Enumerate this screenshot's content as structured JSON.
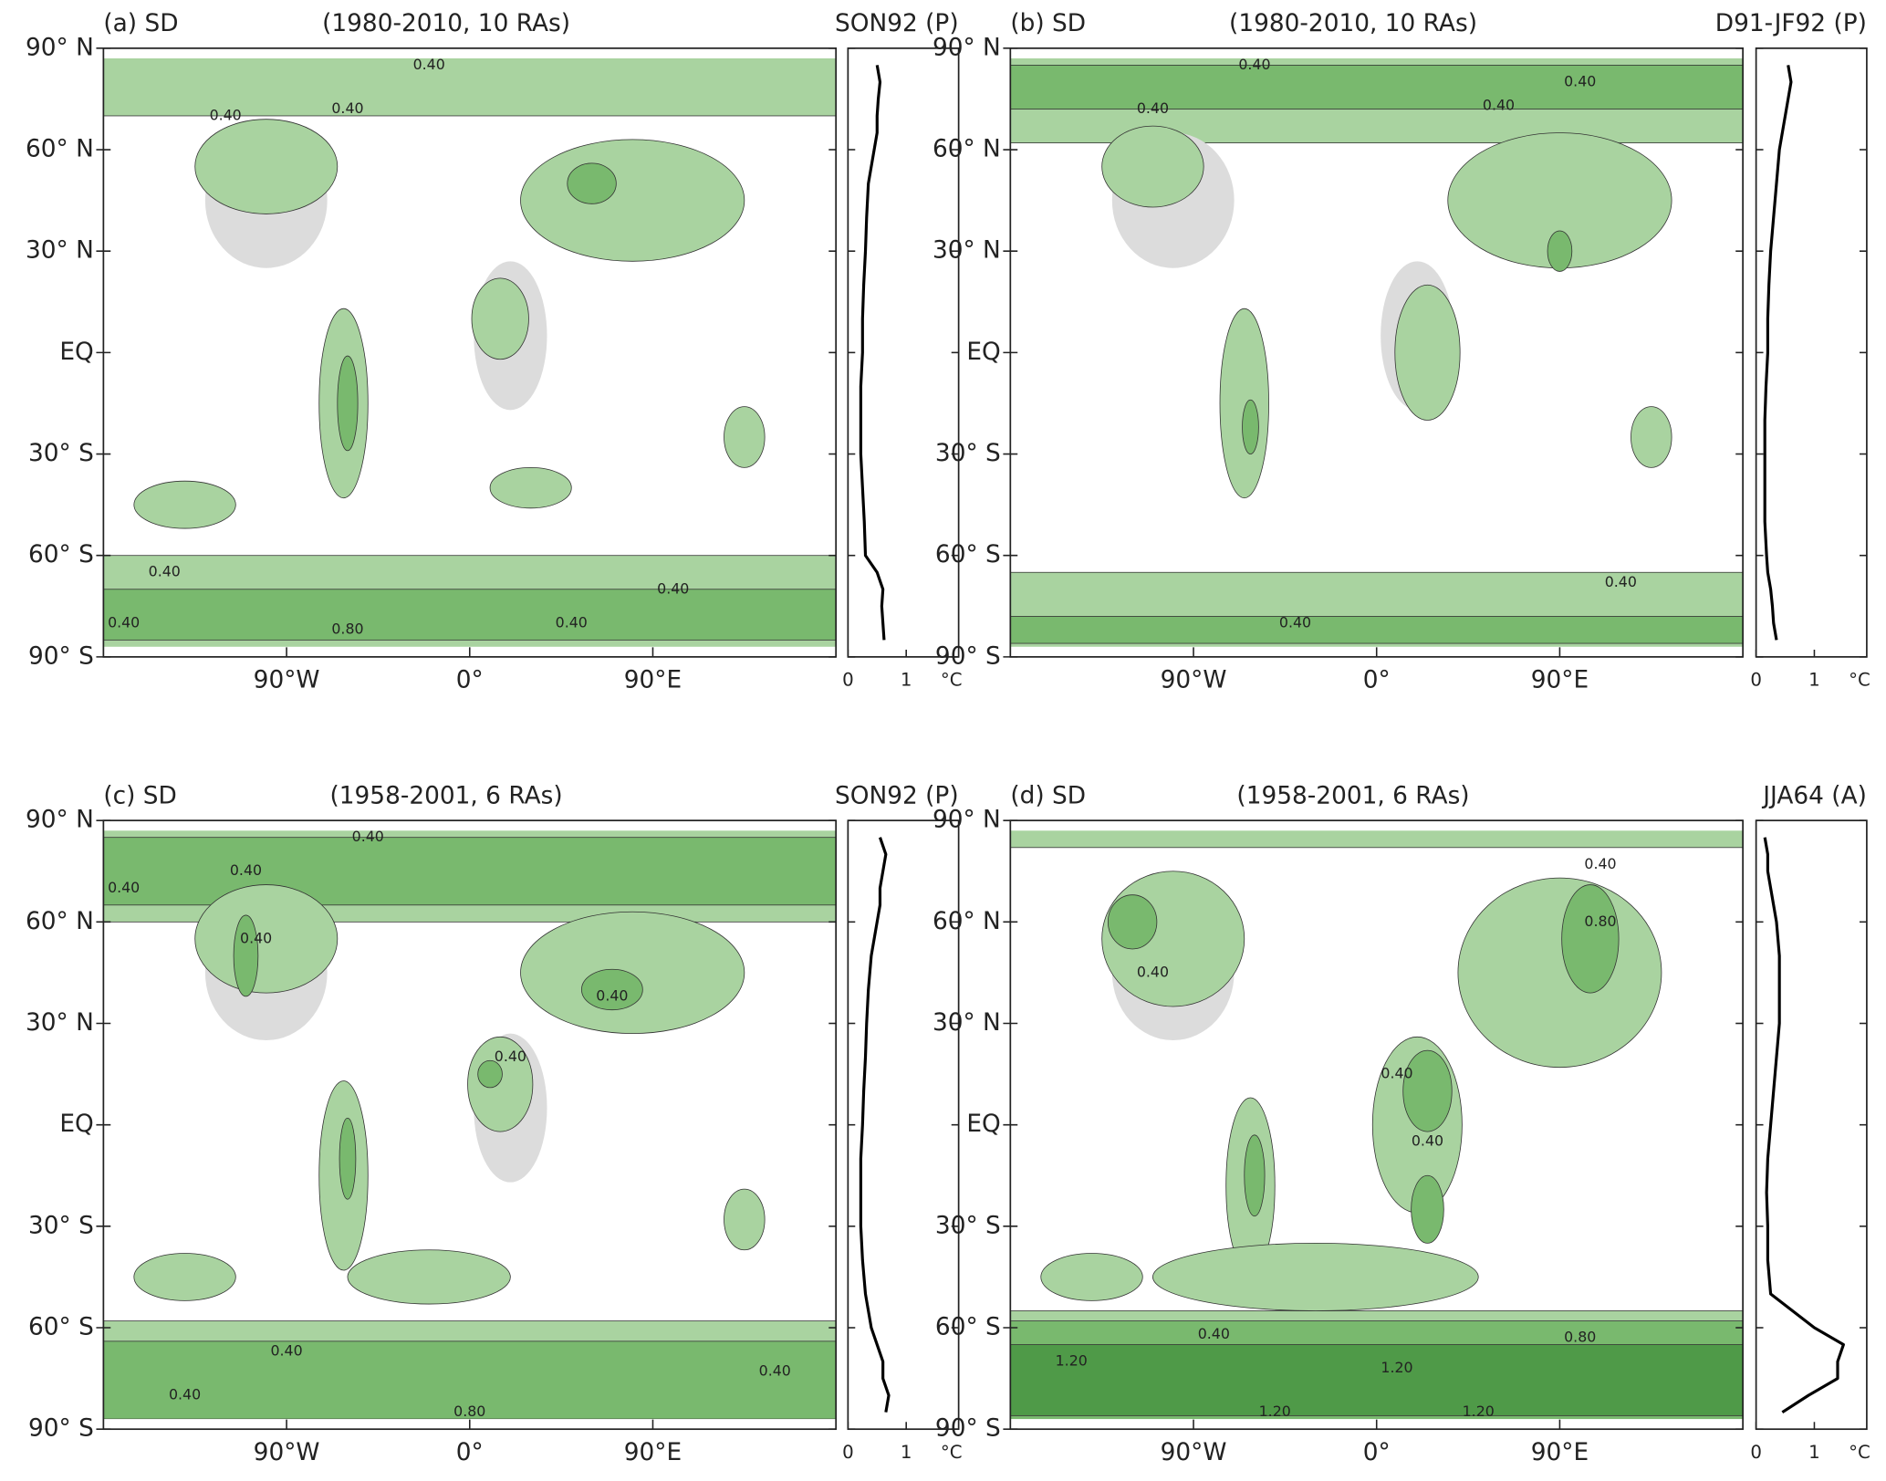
{
  "chart_data": [
    {
      "type": "line",
      "label": "(a) SD",
      "period": "(1980-2010, 10 RAs)",
      "case": "SON92 (P)",
      "xlim": [
        -180,
        180
      ],
      "ylim": [
        -90,
        90
      ],
      "xticks": [
        {
          "value": -90,
          "label": "90°W"
        },
        {
          "value": 0,
          "label": "0°"
        },
        {
          "value": 90,
          "label": "90°E"
        }
      ],
      "yticks": [
        {
          "value": 90,
          "label": "90° N"
        },
        {
          "value": 60,
          "label": "60° N"
        },
        {
          "value": 30,
          "label": "30° N"
        },
        {
          "value": 0,
          "label": "EQ"
        },
        {
          "value": -30,
          "label": "30° S"
        },
        {
          "value": -60,
          "label": "60° S"
        },
        {
          "value": -90,
          "label": "90° S"
        }
      ],
      "contour_labels": [
        "0.40",
        "0.40",
        "0.40",
        "0.40",
        "0.40",
        "0.80",
        "0.40",
        "0.40"
      ],
      "profile": {
        "latitudes": [
          -85,
          -80,
          -75,
          -70,
          -65,
          -60,
          -50,
          -40,
          -30,
          -20,
          -10,
          0,
          10,
          20,
          30,
          40,
          50,
          60,
          65,
          70,
          75,
          80,
          85
        ],
        "values": [
          0.62,
          0.6,
          0.58,
          0.6,
          0.5,
          0.3,
          0.28,
          0.25,
          0.22,
          0.22,
          0.22,
          0.25,
          0.25,
          0.27,
          0.3,
          0.32,
          0.35,
          0.45,
          0.5,
          0.5,
          0.52,
          0.55,
          0.5
        ],
        "xlim": [
          0,
          1.9
        ],
        "xticks": [
          0,
          1
        ],
        "xlabel": "°C",
        "color": "#000000"
      }
    },
    {
      "type": "line",
      "label": "(b) SD",
      "period": "(1980-2010, 10 RAs)",
      "case": "D91-JF92 (P)",
      "xlim": [
        -180,
        180
      ],
      "ylim": [
        -90,
        90
      ],
      "xticks": [
        {
          "value": -90,
          "label": "90°W"
        },
        {
          "value": 0,
          "label": "0°"
        },
        {
          "value": 90,
          "label": "90°E"
        }
      ],
      "yticks": [
        {
          "value": 90,
          "label": "90° N"
        },
        {
          "value": 60,
          "label": "60° N"
        },
        {
          "value": 30,
          "label": "30° N"
        },
        {
          "value": 0,
          "label": "EQ"
        },
        {
          "value": -30,
          "label": "30° S"
        },
        {
          "value": -60,
          "label": "60° S"
        },
        {
          "value": -90,
          "label": "90° S"
        }
      ],
      "contour_labels": [
        "0.40",
        "0.40",
        "0.40",
        "0.40",
        "0.40",
        "0.40"
      ],
      "profile": {
        "latitudes": [
          -85,
          -80,
          -75,
          -70,
          -65,
          -60,
          -50,
          -40,
          -30,
          -20,
          -10,
          0,
          10,
          20,
          30,
          40,
          50,
          60,
          65,
          70,
          75,
          80,
          85
        ],
        "values": [
          0.35,
          0.3,
          0.28,
          0.25,
          0.2,
          0.18,
          0.15,
          0.15,
          0.15,
          0.15,
          0.17,
          0.2,
          0.2,
          0.22,
          0.25,
          0.3,
          0.35,
          0.4,
          0.45,
          0.5,
          0.55,
          0.6,
          0.55
        ],
        "xlim": [
          0,
          1.9
        ],
        "xticks": [
          0,
          1
        ],
        "xlabel": "°C",
        "color": "#000000"
      }
    },
    {
      "type": "line",
      "label": "(c) SD",
      "period": "(1958-2001, 6 RAs)",
      "case": "SON92 (P)",
      "xlim": [
        -180,
        180
      ],
      "ylim": [
        -90,
        90
      ],
      "xticks": [
        {
          "value": -90,
          "label": "90°W"
        },
        {
          "value": 0,
          "label": "0°"
        },
        {
          "value": 90,
          "label": "90°E"
        }
      ],
      "yticks": [
        {
          "value": 90,
          "label": "90° N"
        },
        {
          "value": 60,
          "label": "60° N"
        },
        {
          "value": 30,
          "label": "30° N"
        },
        {
          "value": 0,
          "label": "EQ"
        },
        {
          "value": -30,
          "label": "30° S"
        },
        {
          "value": -60,
          "label": "60° S"
        },
        {
          "value": -90,
          "label": "90° S"
        }
      ],
      "contour_labels": [
        "0.40",
        "0.40",
        "0.40",
        "0.40",
        "0.40",
        "0.40",
        "0.40",
        "0.40",
        "0.40",
        "0.80"
      ],
      "profile": {
        "latitudes": [
          -85,
          -80,
          -75,
          -70,
          -65,
          -60,
          -50,
          -40,
          -30,
          -20,
          -10,
          0,
          10,
          20,
          30,
          40,
          50,
          60,
          65,
          70,
          75,
          80,
          85
        ],
        "values": [
          0.65,
          0.7,
          0.6,
          0.6,
          0.5,
          0.4,
          0.3,
          0.25,
          0.22,
          0.22,
          0.22,
          0.25,
          0.27,
          0.3,
          0.32,
          0.35,
          0.4,
          0.5,
          0.55,
          0.55,
          0.6,
          0.65,
          0.55
        ],
        "xlim": [
          0,
          1.9
        ],
        "xticks": [
          0,
          1
        ],
        "xlabel": "°C",
        "color": "#000000"
      }
    },
    {
      "type": "line",
      "label": "(d) SD",
      "period": "(1958-2001, 6 RAs)",
      "case": "JJA64 (A)",
      "xlim": [
        -180,
        180
      ],
      "ylim": [
        -90,
        90
      ],
      "xticks": [
        {
          "value": -90,
          "label": "90°W"
        },
        {
          "value": 0,
          "label": "0°"
        },
        {
          "value": 90,
          "label": "90°E"
        }
      ],
      "yticks": [
        {
          "value": 90,
          "label": "90° N"
        },
        {
          "value": 60,
          "label": "60° N"
        },
        {
          "value": 30,
          "label": "30° N"
        },
        {
          "value": 0,
          "label": "EQ"
        },
        {
          "value": -30,
          "label": "30° S"
        },
        {
          "value": -60,
          "label": "60° S"
        },
        {
          "value": -90,
          "label": "90° S"
        }
      ],
      "contour_labels": [
        "0.40",
        "0.80",
        "0.40",
        "0.40",
        "0.40",
        "1.20",
        "0.40",
        "0.80",
        "1.20",
        "1.20",
        "1.20"
      ],
      "profile": {
        "latitudes": [
          -85,
          -80,
          -75,
          -70,
          -65,
          -60,
          -50,
          -40,
          -30,
          -20,
          -10,
          0,
          10,
          20,
          30,
          40,
          50,
          60,
          65,
          70,
          75,
          80,
          85
        ],
        "values": [
          0.45,
          0.9,
          1.4,
          1.4,
          1.5,
          1.0,
          0.25,
          0.2,
          0.2,
          0.18,
          0.2,
          0.25,
          0.3,
          0.35,
          0.4,
          0.4,
          0.4,
          0.35,
          0.3,
          0.25,
          0.2,
          0.2,
          0.15
        ],
        "xlim": [
          0,
          1.9
        ],
        "xticks": [
          0,
          1
        ],
        "xlabel": "°C",
        "color": "#000000"
      }
    }
  ]
}
